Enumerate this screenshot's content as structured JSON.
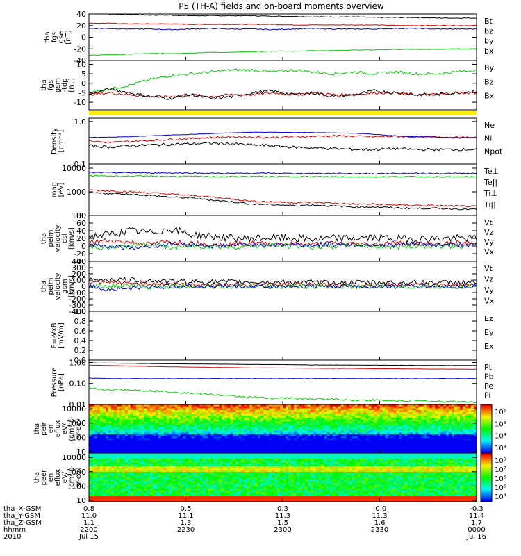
{
  "title": "P5 (TH-A) fields and on-board moments overview",
  "colors": {
    "black": "#000000",
    "red": "#dd0000",
    "green": "#00cc00",
    "blue": "#0000cc",
    "yellow": "#ffee00"
  },
  "chart_data": [
    {
      "type": "line",
      "panel": "fgs_gse",
      "ylabel": [
        "tha",
        "fgs",
        "gse",
        "[nT]"
      ],
      "ylim": [
        -40,
        40
      ],
      "yticks": [
        "40",
        "20",
        "0",
        "-20",
        "-40"
      ],
      "series": [
        {
          "name": "Bt",
          "color": "black",
          "base": [
            42,
            40,
            39,
            38,
            38,
            37,
            37,
            37,
            37,
            36,
            36,
            35,
            35,
            35,
            34,
            34,
            34,
            33,
            33,
            33
          ],
          "noise": 0.6
        },
        {
          "name": "bz",
          "color": "red",
          "base": [
            24,
            24,
            23,
            23,
            23,
            22,
            22,
            22,
            22,
            22,
            21,
            21,
            21,
            21,
            21,
            20,
            20,
            20,
            20,
            20
          ],
          "noise": 0.5
        },
        {
          "name": "by",
          "color": "green",
          "base": [
            -31,
            -30,
            -29,
            -28,
            -28,
            -27,
            -26,
            -26,
            -25,
            -24,
            -24,
            -23,
            -23,
            -22,
            -22,
            -21,
            -21,
            -21,
            -20,
            -20
          ],
          "noise": 0.5
        },
        {
          "name": "bx",
          "color": "blue",
          "base": [
            15,
            15,
            14,
            14,
            13,
            14,
            15,
            14,
            14,
            13,
            14,
            15,
            14,
            14,
            14,
            15,
            15,
            14,
            14,
            14
          ],
          "noise": 0.7
        }
      ]
    },
    {
      "type": "line",
      "panel": "fgs_gsm",
      "ylabel": [
        "tha",
        "fgs",
        "gsm",
        "-tdp",
        "[nT]"
      ],
      "ylim": [
        -14,
        12
      ],
      "yticks": [
        "10",
        "5",
        "0",
        "-5",
        "-10"
      ],
      "series": [
        {
          "name": "By",
          "color": "green",
          "base": [
            -5,
            -3,
            -1,
            2,
            4,
            5,
            6,
            7,
            7,
            6,
            7,
            6,
            5,
            6,
            5,
            6,
            5,
            5,
            6,
            7
          ],
          "noise": 0.7
        },
        {
          "name": "Bz",
          "color": "red",
          "base": [
            -6,
            -5,
            -6,
            -7,
            -7,
            -6,
            -7,
            -6,
            -6,
            -5,
            -6,
            -5,
            -6,
            -6,
            -5,
            -5,
            -6,
            -6,
            -5,
            -5
          ],
          "noise": 0.7
        },
        {
          "name": "Bx",
          "color": "black",
          "base": [
            -6,
            -3,
            -5,
            -7,
            -8,
            -6,
            -8,
            -7,
            -5,
            -4,
            -6,
            -5,
            -7,
            -6,
            -4,
            -5,
            -6,
            -6,
            -5,
            -4
          ],
          "noise": 0.8
        }
      ]
    },
    {
      "type": "line",
      "panel": "density",
      "ylabel": [
        "Density",
        "[cm⁻³]"
      ],
      "scale": "log",
      "ylim": [
        0.1,
        1.2
      ],
      "yticks": [
        "1.0",
        "0.1"
      ],
      "series": [
        {
          "name": "Ne",
          "color": "red",
          "base": [
            0.35,
            0.32,
            0.34,
            0.36,
            0.38,
            0.4,
            0.42,
            0.44,
            0.43,
            0.42,
            0.44,
            0.45,
            0.46,
            0.45,
            0.44,
            0.45,
            0.43,
            0.44,
            0.42,
            0.42
          ],
          "noise": 0.05
        },
        {
          "name": "Ni",
          "color": "black",
          "base": [
            0.27,
            0.25,
            0.27,
            0.28,
            0.29,
            0.3,
            0.31,
            0.3,
            0.28,
            0.27,
            0.25,
            0.24,
            0.23,
            0.22,
            0.22,
            0.23,
            0.22,
            0.22,
            0.22,
            0.22
          ],
          "noise": 0.07
        },
        {
          "name": "Npot",
          "color": "blue",
          "base": [
            0.42,
            0.43,
            0.44,
            0.46,
            0.48,
            0.5,
            0.52,
            0.54,
            0.56,
            0.56,
            0.55,
            0.55,
            0.54,
            0.53,
            0.5,
            0.46,
            0.44,
            0.43,
            0.42,
            0.42
          ],
          "noise": 0.01
        }
      ]
    },
    {
      "type": "line",
      "panel": "temperature",
      "ylabel": [
        "mag",
        "[eV]"
      ],
      "scale": "log",
      "ylim": [
        100,
        15000
      ],
      "yticks": [
        "10000",
        "1000",
        "100"
      ],
      "series": [
        {
          "name": "Te⊥",
          "color": "red",
          "base": [
            1200,
            1100,
            1000,
            900,
            800,
            700,
            600,
            500,
            400,
            380,
            350,
            360,
            330,
            300,
            300,
            280,
            270,
            260,
            250,
            240
          ],
          "noise": 0.08
        },
        {
          "name": "Te||",
          "color": "black",
          "base": [
            900,
            850,
            800,
            700,
            600,
            550,
            450,
            380,
            300,
            290,
            260,
            280,
            250,
            230,
            230,
            210,
            200,
            200,
            190,
            180
          ],
          "noise": 0.08
        },
        {
          "name": "Ti⊥",
          "color": "blue",
          "base": [
            6500,
            6500,
            6400,
            6300,
            6300,
            6200,
            6100,
            6000,
            6100,
            6100,
            6000,
            6000,
            6000,
            5900,
            5900,
            6000,
            6000,
            6000,
            6000,
            6000
          ],
          "noise": 0.05
        },
        {
          "name": "Ti||",
          "color": "green",
          "base": [
            4800,
            4700,
            4600,
            4600,
            4500,
            4500,
            4400,
            4400,
            4500,
            4400,
            4400,
            4400,
            4400,
            4300,
            4300,
            4400,
            4400,
            4300,
            4300,
            4300
          ],
          "noise": 0.05
        }
      ]
    },
    {
      "type": "line",
      "panel": "peim_velocity_dsl",
      "ylabel": [
        "tha",
        "peim",
        "velocity",
        "dsl",
        "[km/s]"
      ],
      "ylim": [
        -40,
        80
      ],
      "yticks": [
        "80",
        "60",
        "40",
        "20",
        "0",
        "-20",
        "-40"
      ],
      "series": [
        {
          "name": "Vt",
          "color": "black",
          "base": [
            25,
            30,
            40,
            35,
            45,
            30,
            25,
            20,
            20,
            22,
            20,
            18,
            20,
            20,
            22,
            20,
            18,
            20,
            20,
            20
          ],
          "noise": 10
        },
        {
          "name": "Vz",
          "color": "red",
          "base": [
            10,
            15,
            10,
            5,
            12,
            8,
            5,
            5,
            8,
            5,
            6,
            5,
            8,
            6,
            5,
            8,
            6,
            5,
            8,
            6
          ],
          "noise": 6
        },
        {
          "name": "Vy",
          "color": "green",
          "base": [
            0,
            -5,
            0,
            5,
            -5,
            0,
            0,
            -3,
            0,
            2,
            0,
            -2,
            0,
            2,
            0,
            -2,
            0,
            2,
            0,
            0
          ],
          "noise": 7
        },
        {
          "name": "Vx",
          "color": "blue",
          "base": [
            5,
            0,
            -5,
            0,
            5,
            5,
            0,
            2,
            5,
            3,
            4,
            2,
            5,
            3,
            4,
            2,
            5,
            3,
            4,
            3
          ],
          "noise": 6
        }
      ]
    },
    {
      "type": "line",
      "panel": "peim_velocity_gsm",
      "ylabel": [
        "tha",
        "peim",
        "velocity",
        "gsm",
        "[km/s]"
      ],
      "ylim": [
        -400,
        400
      ],
      "yticks": [
        "400",
        "300",
        "200",
        "100",
        "0",
        "-100",
        "-200",
        "-300",
        "-400"
      ],
      "series": [
        {
          "name": "Vt",
          "color": "black",
          "base": [
            100,
            110,
            105,
            90,
            80,
            75,
            70,
            70,
            70,
            65,
            65,
            65,
            60,
            60,
            60,
            60,
            60,
            60,
            60,
            60
          ],
          "noise": 40
        },
        {
          "name": "Vz",
          "color": "red",
          "base": [
            50,
            60,
            50,
            40,
            35,
            30,
            30,
            30,
            30,
            28,
            28,
            28,
            25,
            25,
            25,
            25,
            25,
            25,
            25,
            25
          ],
          "noise": 30
        },
        {
          "name": "Vy",
          "color": "green",
          "base": [
            0,
            10,
            0,
            -10,
            0,
            5,
            0,
            0,
            0,
            0,
            0,
            0,
            0,
            0,
            0,
            0,
            0,
            0,
            0,
            0
          ],
          "noise": 40
        },
        {
          "name": "Vx",
          "color": "blue",
          "base": [
            0,
            -50,
            -30,
            -10,
            0,
            0,
            0,
            0,
            0,
            0,
            0,
            0,
            0,
            0,
            0,
            0,
            0,
            0,
            0,
            0
          ],
          "noise": 35
        }
      ]
    },
    {
      "type": "line",
      "panel": "efield",
      "ylabel": [
        "E=-VxB",
        "[mV/m]"
      ],
      "ylim": [
        0,
        1
      ],
      "yticks": [
        "1.0",
        "0.8",
        "0.6",
        "0.4",
        "0.2",
        "0.0"
      ],
      "series": [
        {
          "name": "Ez",
          "color": "red",
          "base": [],
          "noise": 0
        },
        {
          "name": "Ey",
          "color": "green",
          "base": [],
          "noise": 0
        },
        {
          "name": "Ex",
          "color": "blue",
          "base": [],
          "noise": 0
        }
      ]
    },
    {
      "type": "line",
      "panel": "pressure",
      "ylabel": [
        "Pressure",
        "[nPa]"
      ],
      "scale": "log",
      "ylim": [
        0.01,
        1.3
      ],
      "yticks": [
        "1.00",
        "0.10",
        "0.01"
      ],
      "series": [
        {
          "name": "Pt",
          "color": "black",
          "base": [
            0.95,
            0.93,
            0.9,
            0.88,
            0.86,
            0.85,
            0.84,
            0.82,
            0.8,
            0.8,
            0.78,
            0.76,
            0.76,
            0.75,
            0.74,
            0.74,
            0.73,
            0.72,
            0.72,
            0.72
          ],
          "noise": 0.01
        },
        {
          "name": "Pb",
          "color": "red",
          "base": [
            0.75,
            0.72,
            0.68,
            0.65,
            0.62,
            0.6,
            0.58,
            0.57,
            0.55,
            0.55,
            0.54,
            0.53,
            0.52,
            0.52,
            0.5,
            0.5,
            0.49,
            0.48,
            0.48,
            0.47
          ],
          "noise": 0.01
        },
        {
          "name": "Pe",
          "color": "green",
          "base": [
            0.06,
            0.05,
            0.05,
            0.045,
            0.04,
            0.035,
            0.03,
            0.025,
            0.022,
            0.02,
            0.02,
            0.018,
            0.018,
            0.016,
            0.016,
            0.015,
            0.015,
            0.014,
            0.014,
            0.013
          ],
          "noise": 0.1
        },
        {
          "name": "Pi",
          "color": "blue",
          "base": [
            0.18,
            0.17,
            0.17,
            0.17,
            0.17,
            0.17,
            0.17,
            0.17,
            0.17,
            0.17,
            0.17,
            0.17,
            0.17,
            0.17,
            0.17,
            0.17,
            0.17,
            0.17,
            0.17,
            0.17
          ],
          "noise": 0.02
        }
      ]
    },
    {
      "type": "heatmap",
      "panel": "peir_en_eflux",
      "ylabel": [
        "tha",
        "peir",
        "en",
        "eflux",
        "eV/",
        "(cm²-s-",
        "sr-eV)"
      ],
      "scale": "log",
      "ylim": [
        8,
        20000
      ],
      "yticks": [
        "10000",
        "1000",
        "100",
        "10"
      ],
      "colorbar_ticks": [
        "10⁶",
        "10⁵",
        "10⁴",
        "10³"
      ]
    },
    {
      "type": "heatmap",
      "panel": "peer_en_eflux",
      "ylabel": [
        "tha",
        "peer",
        "en",
        "eflux",
        "eV/",
        "(cm²-s-",
        "sr-eV)"
      ],
      "scale": "log",
      "ylim": [
        8,
        20000
      ],
      "yticks": [
        "10000",
        "1000",
        "100",
        "10"
      ],
      "colorbar_ticks": [
        "10⁸",
        "10⁷",
        "10⁶",
        "10⁵",
        "10⁴"
      ]
    }
  ],
  "xaxis": {
    "tick_labels": [
      "2200",
      "2230",
      "2300",
      "2330",
      "0000"
    ],
    "rows": [
      {
        "label": "tha_X-GSM",
        "values": [
          "0.8",
          "0.5",
          "0.3",
          "-0.0",
          "-0.3"
        ]
      },
      {
        "label": "tha_Y-GSM",
        "values": [
          "11.0",
          "11.1",
          "11.3",
          "11.3",
          "11.4"
        ]
      },
      {
        "label": "tha_Z-GSM",
        "values": [
          "1.1",
          "1.3",
          "1.5",
          "1.6",
          "1.7"
        ]
      },
      {
        "label": "hhmm",
        "values": [
          "2200",
          "2230",
          "2300",
          "2330",
          "0000"
        ]
      },
      {
        "label": "2010",
        "values": [
          "Jul 15",
          "",
          "",
          "",
          "Jul 16"
        ]
      }
    ]
  }
}
